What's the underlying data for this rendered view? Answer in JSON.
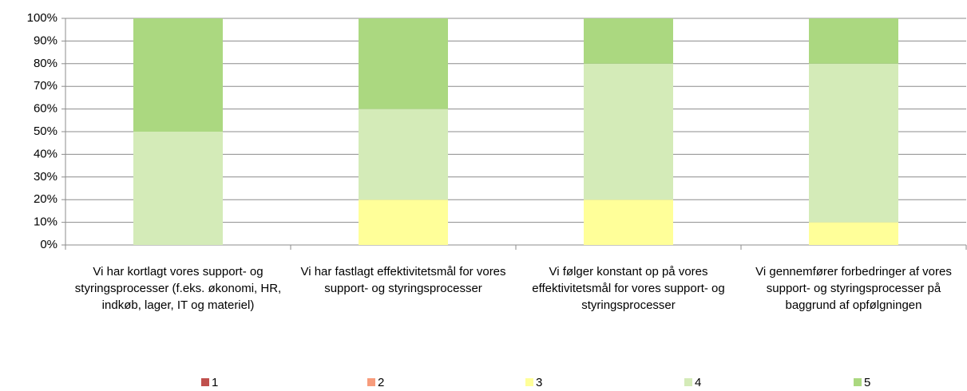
{
  "chart_data": {
    "type": "stacked_bar",
    "categories": [
      "Vi har kortlagt vores support- og styringsprocesser (f.eks. økonomi, HR, indkøb, lager, IT og materiel)",
      "Vi har fastlagt effektivitetsmål for vores support- og styringsprocesser",
      "Vi følger konstant op på vores effektivitetsmål for vores support- og styringsprocesser",
      "Vi gennemfører forbedringer af vores support- og styringsprocesser på baggrund af opfølgningen"
    ],
    "series": [
      {
        "name": "1",
        "color": "#c0504d",
        "values": [
          0,
          0,
          0,
          0
        ]
      },
      {
        "name": "2",
        "color": "#f79c7c",
        "values": [
          0,
          0,
          0,
          0
        ]
      },
      {
        "name": "3",
        "color": "#ffff99",
        "values": [
          0,
          20,
          20,
          10
        ]
      },
      {
        "name": "4",
        "color": "#d4ebb8",
        "values": [
          50,
          40,
          60,
          70
        ]
      },
      {
        "name": "5",
        "color": "#abd880",
        "values": [
          50,
          40,
          20,
          20
        ]
      }
    ],
    "ylim": [
      0,
      100
    ],
    "yticks": [
      {
        "value": 0,
        "label": "0%"
      },
      {
        "value": 10,
        "label": "10%"
      },
      {
        "value": 20,
        "label": "20%"
      },
      {
        "value": 30,
        "label": "30%"
      },
      {
        "value": 40,
        "label": "40%"
      },
      {
        "value": 50,
        "label": "50%"
      },
      {
        "value": 60,
        "label": "60%"
      },
      {
        "value": 70,
        "label": "70%"
      },
      {
        "value": 80,
        "label": "80%"
      },
      {
        "value": 90,
        "label": "90%"
      },
      {
        "value": 100,
        "label": "100%"
      }
    ],
    "grid": true,
    "legend": "bottom"
  }
}
